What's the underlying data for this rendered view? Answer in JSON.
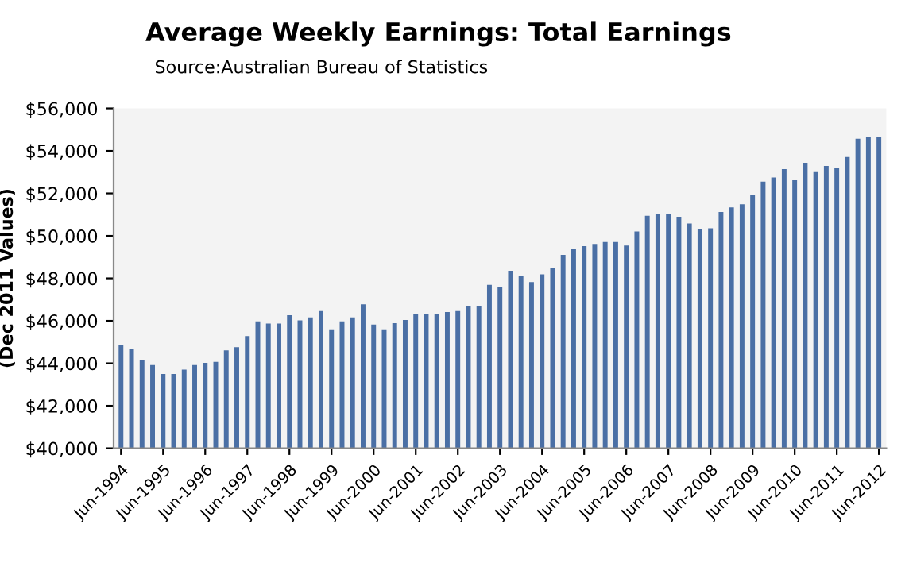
{
  "chart_data": {
    "type": "bar",
    "title": "Average Weekly Earnings: Total Earnings",
    "subtitle": "Source:Australian Bureau of Statistics",
    "ylabel": "(Dec 2011 Values)",
    "categories": [
      "Jun-1994",
      null,
      null,
      null,
      "Jun-1995",
      null,
      null,
      null,
      "Jun-1996",
      null,
      null,
      null,
      "Jun-1997",
      null,
      null,
      null,
      "Jun-1998",
      null,
      null,
      null,
      "Jun-1999",
      null,
      null,
      null,
      "Jun-2000",
      null,
      null,
      null,
      "Jun-2001",
      null,
      null,
      null,
      "Jun-2002",
      null,
      null,
      null,
      "Jun-2003",
      null,
      null,
      null,
      "Jun-2004",
      null,
      null,
      null,
      "Jun-2005",
      null,
      null,
      null,
      "Jun-2006",
      null,
      null,
      null,
      "Jun-2007",
      null,
      null,
      null,
      "Jun-2008",
      null,
      null,
      null,
      "Jun-2009",
      null,
      null,
      null,
      "Jun-2010",
      null,
      null,
      null,
      "Jun-2011",
      null,
      null,
      null,
      "Jun-2012"
    ],
    "values": [
      44860,
      44660,
      44170,
      43920,
      43500,
      43500,
      43700,
      43920,
      44020,
      44070,
      44610,
      44760,
      45280,
      45970,
      45870,
      45870,
      46260,
      46020,
      46160,
      46460,
      45600,
      45970,
      46160,
      46780,
      45820,
      45600,
      45890,
      46040,
      46340,
      46340,
      46340,
      46410,
      46460,
      46710,
      46710,
      47690,
      47590,
      48360,
      48110,
      47820,
      48190,
      48480,
      49100,
      49370,
      49520,
      49620,
      49710,
      49710,
      49540,
      50210,
      50950,
      51050,
      51050,
      50900,
      50580,
      50310,
      50360,
      51120,
      51340,
      51490,
      51930,
      52550,
      52750,
      53140,
      52620,
      53440,
      53040,
      53290,
      53210,
      53710,
      54570,
      54640,
      54640
    ],
    "color": "#4a6fa5",
    "ylim": [
      40000,
      56000
    ],
    "yticks": [
      {
        "value": 40000,
        "label": "$40,000"
      },
      {
        "value": 42000,
        "label": "$42,000"
      },
      {
        "value": 44000,
        "label": "$44,000"
      },
      {
        "value": 46000,
        "label": "$46,000"
      },
      {
        "value": 48000,
        "label": "$48,000"
      },
      {
        "value": 50000,
        "label": "$50,000"
      },
      {
        "value": 52000,
        "label": "$52,000"
      },
      {
        "value": 54000,
        "label": "$54,000"
      },
      {
        "value": 56000,
        "label": "$56,000"
      }
    ],
    "grid": false,
    "legend": false
  }
}
